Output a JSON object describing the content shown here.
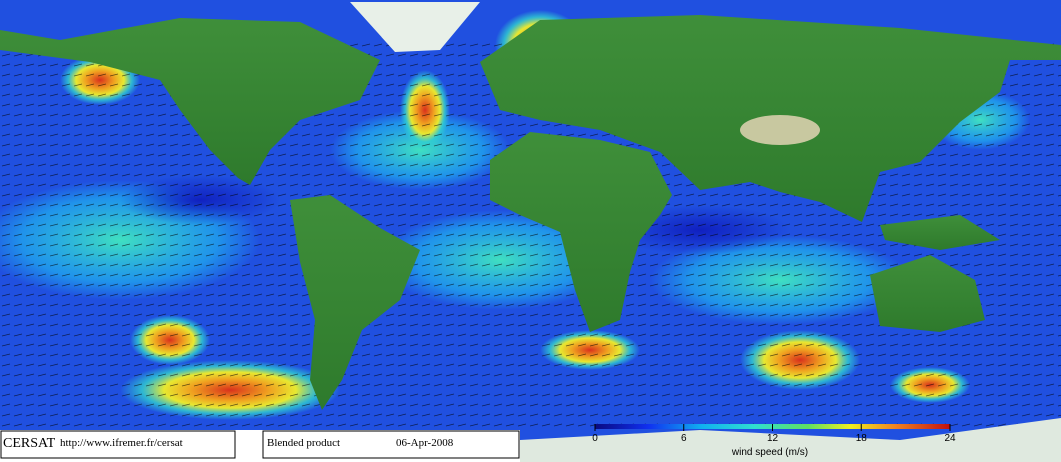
{
  "footer": {
    "logo": "CERSAT",
    "url": "http://www.ifremer.fr/cersat",
    "product": "Blended product",
    "date": "06-Apr-2008"
  },
  "colorbar": {
    "label": "wind speed (m/s)",
    "range": [
      0,
      24
    ],
    "ticks": [
      0,
      6,
      12,
      18,
      24
    ]
  }
}
